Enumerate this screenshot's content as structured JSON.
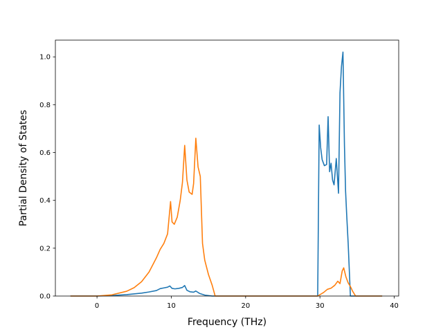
{
  "chart_data": {
    "type": "line",
    "xlabel": "Frequency (THz)",
    "ylabel": "Partial Density of States",
    "xlim": [
      -5.6,
      40.6
    ],
    "ylim": [
      0.0,
      1.07
    ],
    "x_ticks": [
      0,
      10,
      20,
      30,
      40
    ],
    "x_tick_labels": [
      "0",
      "10",
      "20",
      "30",
      "40"
    ],
    "y_ticks": [
      0.0,
      0.2,
      0.4,
      0.6,
      0.8,
      1.0
    ],
    "y_tick_labels": [
      "0.0",
      "0.2",
      "0.4",
      "0.6",
      "0.8",
      "1.0"
    ],
    "grid": false,
    "legend": "none",
    "series": [
      {
        "color": "#1f77b4",
        "x": [
          -3.5,
          0,
          2,
          4,
          6,
          7,
          8,
          8.5,
          9,
          9.5,
          9.8,
          10.1,
          10.5,
          11,
          11.5,
          11.8,
          12.1,
          12.5,
          13,
          13.3,
          13.8,
          14.5,
          15.5,
          16,
          29.7,
          29.9,
          30.1,
          30.3,
          30.6,
          30.9,
          31.1,
          31.3,
          31.5,
          31.7,
          31.9,
          32.2,
          32.5,
          32.7,
          32.9,
          33.1,
          33.3,
          33.45,
          33.6,
          33.8,
          34.1,
          34.4,
          34.7,
          35,
          38.3
        ],
        "y": [
          0.0,
          0.0,
          0.002,
          0.006,
          0.012,
          0.017,
          0.023,
          0.031,
          0.034,
          0.037,
          0.042,
          0.032,
          0.03,
          0.032,
          0.036,
          0.044,
          0.024,
          0.018,
          0.016,
          0.021,
          0.011,
          0.004,
          0.0,
          0.0,
          0.0,
          0.715,
          0.62,
          0.57,
          0.545,
          0.55,
          0.75,
          0.52,
          0.555,
          0.485,
          0.465,
          0.575,
          0.43,
          0.85,
          0.96,
          1.02,
          0.63,
          0.44,
          0.34,
          0.22,
          0.0,
          0.0,
          0.0,
          0.0,
          0.0
        ]
      },
      {
        "color": "#ff7f0e",
        "x": [
          -3.5,
          0,
          2,
          4,
          5,
          6,
          7,
          8,
          8.5,
          9,
          9.5,
          9.9,
          10.1,
          10.4,
          10.8,
          11.2,
          11.5,
          11.8,
          12.1,
          12.4,
          12.8,
          13.0,
          13.3,
          13.6,
          13.9,
          14.2,
          14.5,
          15.0,
          15.5,
          15.9,
          16.5,
          29.7,
          30.5,
          31.0,
          31.5,
          32.0,
          32.4,
          32.7,
          33.0,
          33.2,
          33.5,
          33.8,
          34.1,
          34.4,
          34.8,
          35.0,
          38.3
        ],
        "y": [
          0.0,
          0.0,
          0.005,
          0.02,
          0.035,
          0.06,
          0.1,
          0.16,
          0.195,
          0.22,
          0.26,
          0.395,
          0.31,
          0.3,
          0.33,
          0.4,
          0.475,
          0.63,
          0.485,
          0.435,
          0.425,
          0.47,
          0.66,
          0.54,
          0.5,
          0.22,
          0.15,
          0.09,
          0.045,
          0.0,
          0.0,
          0.0,
          0.015,
          0.028,
          0.033,
          0.045,
          0.062,
          0.052,
          0.105,
          0.118,
          0.08,
          0.055,
          0.04,
          0.02,
          0.0,
          0.0,
          0.0
        ]
      }
    ]
  }
}
